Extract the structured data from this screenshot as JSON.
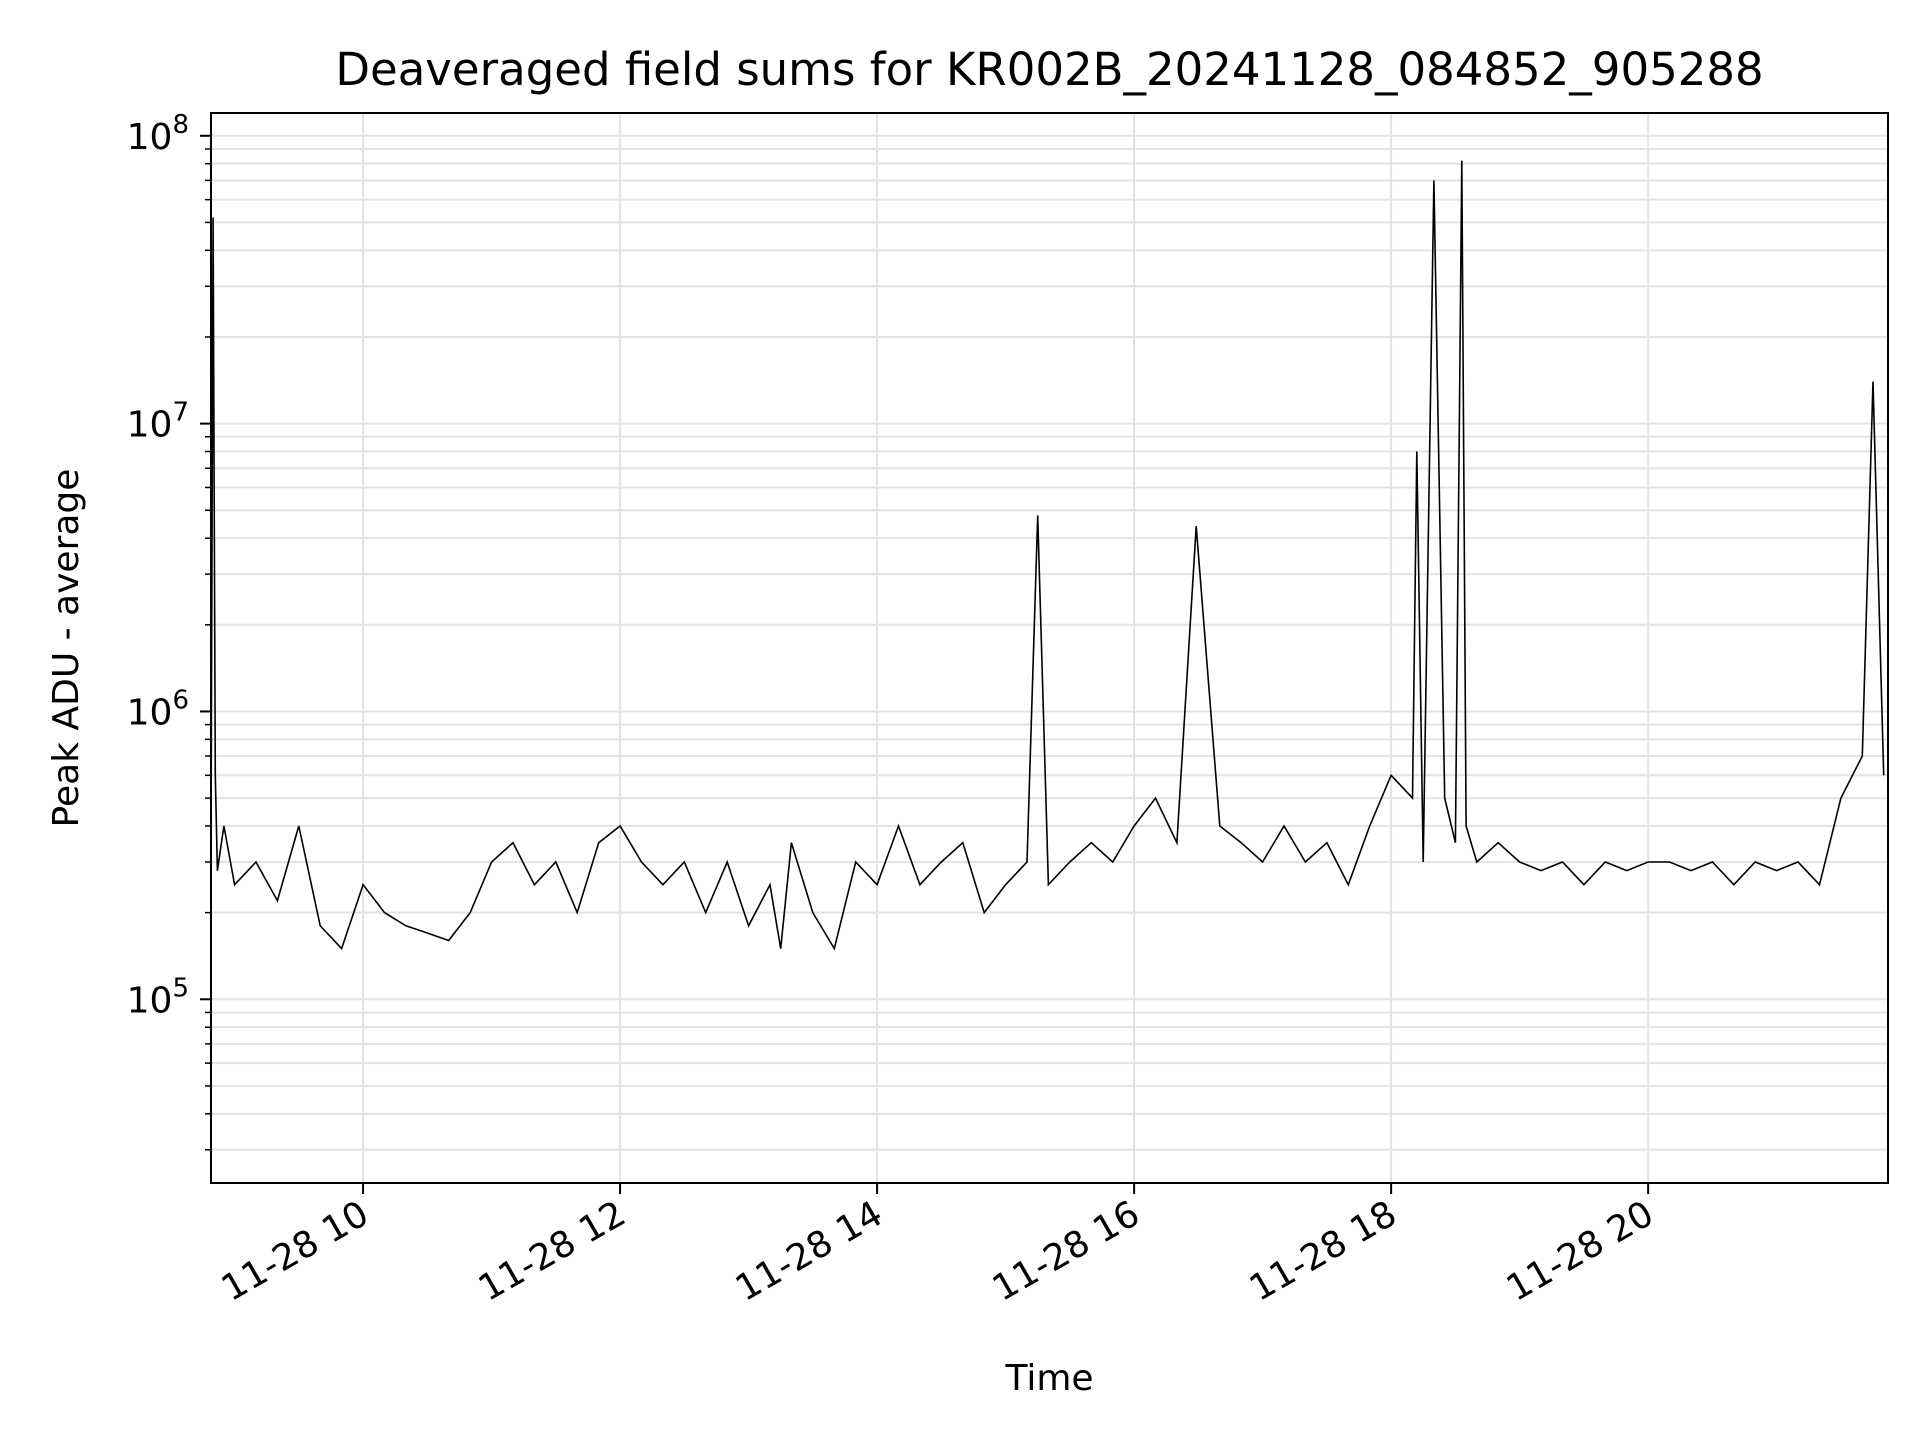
{
  "chart_data": {
    "type": "line",
    "title": "Deaveraged field sums for KR002B_20241128_084852_905288",
    "xlabel": "Time",
    "ylabel": "Peak ADU - average",
    "xscale": "time",
    "yscale": "log",
    "xlim": [
      "2024-11-28 08:49",
      "2024-11-28 21:52"
    ],
    "ylim": [
      23000,
      120000000
    ],
    "grid": true,
    "legend": "none",
    "line_color": "#000000",
    "grid_color": "#e3e3e3",
    "x_ticks": [
      {
        "value": "2024-11-28 10:00",
        "label": "11-28 10"
      },
      {
        "value": "2024-11-28 12:00",
        "label": "11-28 12"
      },
      {
        "value": "2024-11-28 14:00",
        "label": "11-28 14"
      },
      {
        "value": "2024-11-28 16:00",
        "label": "11-28 16"
      },
      {
        "value": "2024-11-28 18:00",
        "label": "11-28 18"
      },
      {
        "value": "2024-11-28 20:00",
        "label": "11-28 20"
      }
    ],
    "y_ticks": [
      {
        "value": 100000,
        "base": "10",
        "exp": "5"
      },
      {
        "value": 1000000,
        "base": "10",
        "exp": "6"
      },
      {
        "value": 10000000,
        "base": "10",
        "exp": "7"
      },
      {
        "value": 100000000,
        "base": "10",
        "exp": "8"
      }
    ],
    "series": [
      {
        "x": [
          "2024-11-28 08:49",
          "2024-11-28 08:50",
          "2024-11-28 08:51",
          "2024-11-28 08:52",
          "2024-11-28 08:55",
          "2024-11-28 09:00",
          "2024-11-28 09:10",
          "2024-11-28 09:20",
          "2024-11-28 09:30",
          "2024-11-28 09:40",
          "2024-11-28 09:50",
          "2024-11-28 10:00",
          "2024-11-28 10:10",
          "2024-11-28 10:20",
          "2024-11-28 10:30",
          "2024-11-28 10:40",
          "2024-11-28 10:50",
          "2024-11-28 11:00",
          "2024-11-28 11:10",
          "2024-11-28 11:20",
          "2024-11-28 11:30",
          "2024-11-28 11:40",
          "2024-11-28 11:50",
          "2024-11-28 12:00",
          "2024-11-28 12:10",
          "2024-11-28 12:20",
          "2024-11-28 12:30",
          "2024-11-28 12:40",
          "2024-11-28 12:50",
          "2024-11-28 13:00",
          "2024-11-28 13:10",
          "2024-11-28 13:15",
          "2024-11-28 13:20",
          "2024-11-28 13:30",
          "2024-11-28 13:40",
          "2024-11-28 13:50",
          "2024-11-28 14:00",
          "2024-11-28 14:10",
          "2024-11-28 14:20",
          "2024-11-28 14:30",
          "2024-11-28 14:40",
          "2024-11-28 14:50",
          "2024-11-28 15:00",
          "2024-11-28 15:10",
          "2024-11-28 15:15",
          "2024-11-28 15:20",
          "2024-11-28 15:30",
          "2024-11-28 15:40",
          "2024-11-28 15:50",
          "2024-11-28 16:00",
          "2024-11-28 16:10",
          "2024-11-28 16:20",
          "2024-11-28 16:29",
          "2024-11-28 16:40",
          "2024-11-28 16:50",
          "2024-11-28 17:00",
          "2024-11-28 17:10",
          "2024-11-28 17:20",
          "2024-11-28 17:30",
          "2024-11-28 17:40",
          "2024-11-28 17:50",
          "2024-11-28 18:00",
          "2024-11-28 18:10",
          "2024-11-28 18:12",
          "2024-11-28 18:15",
          "2024-11-28 18:20",
          "2024-11-28 18:25",
          "2024-11-28 18:30",
          "2024-11-28 18:33",
          "2024-11-28 18:35",
          "2024-11-28 18:40",
          "2024-11-28 18:50",
          "2024-11-28 19:00",
          "2024-11-28 19:10",
          "2024-11-28 19:20",
          "2024-11-28 19:30",
          "2024-11-28 19:40",
          "2024-11-28 19:50",
          "2024-11-28 20:00",
          "2024-11-28 20:10",
          "2024-11-28 20:20",
          "2024-11-28 20:30",
          "2024-11-28 20:40",
          "2024-11-28 20:50",
          "2024-11-28 21:00",
          "2024-11-28 21:10",
          "2024-11-28 21:20",
          "2024-11-28 21:30",
          "2024-11-28 21:40",
          "2024-11-28 21:45",
          "2024-11-28 21:50"
        ],
        "y": [
          350000,
          52000000,
          600000,
          280000,
          400000,
          250000,
          300000,
          220000,
          400000,
          180000,
          150000,
          250000,
          200000,
          180000,
          170000,
          160000,
          200000,
          300000,
          350000,
          250000,
          300000,
          200000,
          350000,
          400000,
          300000,
          250000,
          300000,
          200000,
          300000,
          180000,
          250000,
          150000,
          350000,
          200000,
          150000,
          300000,
          250000,
          400000,
          250000,
          300000,
          350000,
          200000,
          250000,
          300000,
          4800000,
          250000,
          300000,
          350000,
          300000,
          400000,
          500000,
          350000,
          4400000,
          400000,
          350000,
          300000,
          400000,
          300000,
          350000,
          250000,
          400000,
          600000,
          500000,
          8000000,
          300000,
          70000000,
          500000,
          350000,
          82000000,
          400000,
          300000,
          350000,
          300000,
          280000,
          300000,
          250000,
          300000,
          280000,
          300000,
          300000,
          280000,
          300000,
          250000,
          300000,
          280000,
          300000,
          250000,
          500000,
          700000,
          14000000,
          600000
        ]
      }
    ]
  }
}
